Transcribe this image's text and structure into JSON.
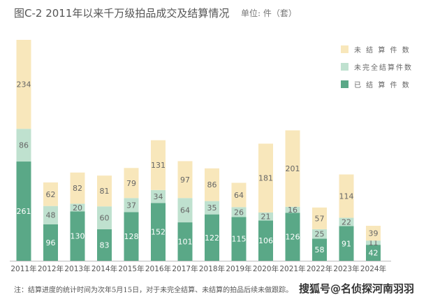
{
  "chart_data": {
    "type": "bar",
    "stacked": true,
    "title": "图C-2   2011年以来千万级拍品成交及结算情况",
    "unit": "单位: 件（套）",
    "categories": [
      "2011年",
      "2012年",
      "2013年",
      "2014年",
      "2015年",
      "2016年",
      "2017年",
      "2018年",
      "2019年",
      "2020年",
      "2021年",
      "2022年",
      "2023年",
      "2024年"
    ],
    "series": [
      {
        "name": "已 结 算 件 数",
        "color": "#5aa887",
        "values": [
          261,
          96,
          130,
          83,
          128,
          152,
          101,
          122,
          115,
          106,
          126,
          58,
          91,
          42
        ]
      },
      {
        "name": "未完全结算件数",
        "color": "#bfe1cf",
        "values": [
          86,
          48,
          20,
          60,
          37,
          34,
          64,
          35,
          26,
          21,
          16,
          25,
          22,
          11
        ]
      },
      {
        "name": "未 结 算 件 数",
        "color": "#f8e7bb",
        "values": [
          234,
          62,
          82,
          81,
          79,
          131,
          97,
          86,
          64,
          181,
          201,
          57,
          114,
          39
        ]
      }
    ],
    "legend_position": "top-right",
    "grid": false,
    "ylim": [
      0,
      600
    ],
    "note": "注：结算进度的统计时间为次年5月15日，对于未完全结算、未结算的拍品后续未做跟踪。",
    "watermark": "搜狐号@名侦探河南羽羽"
  }
}
